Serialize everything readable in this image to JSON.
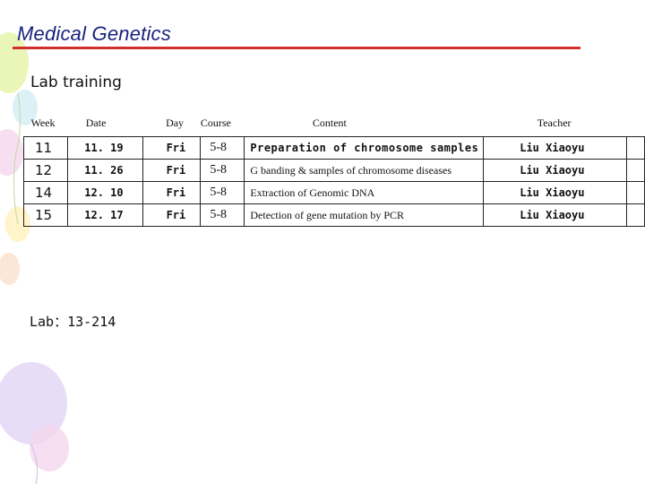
{
  "header": {
    "title": "Medical Genetics",
    "subtitle": "Lab training"
  },
  "table": {
    "columns": [
      "Week",
      "Date",
      "Day",
      "Course",
      "Content",
      "Teacher"
    ],
    "rows": [
      {
        "week": "11",
        "date": "11. 19",
        "day": "Fri",
        "course": "5-8",
        "content": "Preparation of chromosome samples",
        "teacher": "Liu Xiaoyu"
      },
      {
        "week": "12",
        "date": "11. 26",
        "day": "Fri",
        "course": "5-8",
        "content": "G banding & samples of chromosome diseases",
        "teacher": "Liu Xiaoyu"
      },
      {
        "week": "14",
        "date": "12. 10",
        "day": "Fri",
        "course": "5-8",
        "content": "Extraction of Genomic DNA",
        "teacher": "Liu Xiaoyu"
      },
      {
        "week": "15",
        "date": "12. 17",
        "day": "Fri",
        "course": "5-8",
        "content": "Detection of gene mutation by PCR",
        "teacher": "Liu Xiaoyu"
      }
    ]
  },
  "footer": {
    "room": "Lab：13-214"
  },
  "colors": {
    "title": "#1a237e",
    "rule": "#d32f2f"
  }
}
